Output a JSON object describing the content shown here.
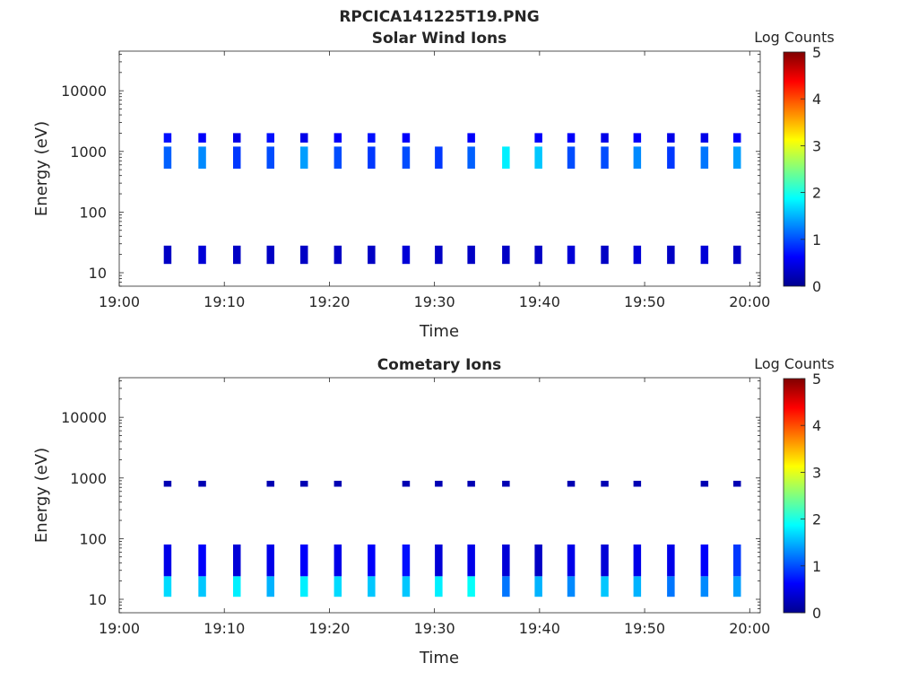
{
  "figure": {
    "title": "RPCICA141225T19.PNG"
  },
  "colormap": {
    "name": "jet",
    "stops": [
      "#00008f",
      "#0000ff",
      "#0080ff",
      "#00ffff",
      "#80ff80",
      "#ffff00",
      "#ff8000",
      "#ff0000",
      "#800000"
    ]
  },
  "chart_data": [
    {
      "type": "heatmap",
      "title": "Solar Wind Ions",
      "xlabel": "Time",
      "ylabel": "Energy (eV)",
      "y_scale": "log",
      "ylim": [
        6,
        45000
      ],
      "xlim": [
        "19:00",
        "20:01"
      ],
      "x_ticks": [
        "19:00",
        "19:10",
        "19:20",
        "19:30",
        "19:40",
        "19:50",
        "20:00"
      ],
      "y_ticks": [
        "10",
        "100",
        "1000",
        "10000"
      ],
      "colorbar": {
        "label": "Log Counts",
        "range": [
          0,
          5
        ],
        "ticks": [
          "0",
          "1",
          "2",
          "3",
          "4",
          "5"
        ]
      },
      "samples_minutes": [
        4.6,
        7.9,
        11.2,
        14.4,
        17.6,
        20.8,
        24.0,
        27.3,
        30.4,
        33.5,
        36.8,
        39.9,
        43.0,
        46.2,
        49.3,
        52.5,
        55.7,
        58.8
      ],
      "bands": [
        {
          "energy_center_ev": 800,
          "energy_low_ev": 520,
          "energy_high_ev": 1200,
          "log_counts": [
            1.1,
            1.3,
            0.9,
            1.0,
            1.4,
            1.0,
            0.9,
            1.0,
            0.9,
            1.1,
            1.8,
            1.6,
            1.0,
            1.0,
            1.3,
            0.9,
            1.2,
            1.4
          ]
        },
        {
          "energy_center_ev": 1700,
          "energy_low_ev": 1400,
          "energy_high_ev": 2000,
          "log_counts": [
            0.7,
            0.6,
            0.5,
            0.7,
            0.5,
            0.6,
            0.7,
            0.6,
            0,
            0.6,
            0,
            0.6,
            0.6,
            0.5,
            0.6,
            0.5,
            0.5,
            0.6
          ]
        },
        {
          "energy_center_ev": 20,
          "energy_low_ev": 14,
          "energy_high_ev": 28,
          "log_counts": [
            0.3,
            0.4,
            0.3,
            0.3,
            0.3,
            0.3,
            0.3,
            0.4,
            0.3,
            0.3,
            0.3,
            0.3,
            0.4,
            0.3,
            0.4,
            0.3,
            0.4,
            0.3
          ]
        }
      ]
    },
    {
      "type": "heatmap",
      "title": "Cometary Ions",
      "xlabel": "Time",
      "ylabel": "Energy (eV)",
      "y_scale": "log",
      "ylim": [
        6,
        45000
      ],
      "xlim": [
        "19:00",
        "20:01"
      ],
      "x_ticks": [
        "19:00",
        "19:10",
        "19:20",
        "19:30",
        "19:40",
        "19:50",
        "20:00"
      ],
      "y_ticks": [
        "10",
        "100",
        "1000",
        "10000"
      ],
      "colorbar": {
        "label": "Log Counts",
        "range": [
          0,
          5
        ],
        "ticks": [
          "0",
          "1",
          "2",
          "3",
          "4",
          "5"
        ]
      },
      "samples_minutes": [
        4.6,
        7.9,
        11.2,
        14.4,
        17.6,
        20.8,
        24.0,
        27.3,
        30.4,
        33.5,
        36.8,
        39.9,
        43.0,
        46.2,
        49.3,
        52.5,
        55.7,
        58.8
      ],
      "bands": [
        {
          "energy_center_ev": 17,
          "energy_low_ev": 11,
          "energy_high_ev": 24,
          "log_counts": [
            1.7,
            1.6,
            1.8,
            1.5,
            1.8,
            1.7,
            1.6,
            1.6,
            1.8,
            1.9,
            1.2,
            1.5,
            1.3,
            1.6,
            1.5,
            1.2,
            1.3,
            1.4
          ]
        },
        {
          "energy_center_ev": 40,
          "energy_low_ev": 24,
          "energy_high_ev": 80,
          "log_counts": [
            0.5,
            0.6,
            0.4,
            0.5,
            0.6,
            0.5,
            0.6,
            0.7,
            0.4,
            0.5,
            0.4,
            0.3,
            0.5,
            0.4,
            0.5,
            0.5,
            0.6,
            0.9
          ]
        },
        {
          "energy_center_ev": 800,
          "energy_low_ev": 720,
          "energy_high_ev": 900,
          "log_counts": [
            0.2,
            0.2,
            0,
            0.2,
            0.2,
            0.2,
            0,
            0.2,
            0.2,
            0.2,
            0.2,
            0,
            0.2,
            0.2,
            0.2,
            0,
            0.2,
            0.2
          ]
        }
      ]
    }
  ]
}
